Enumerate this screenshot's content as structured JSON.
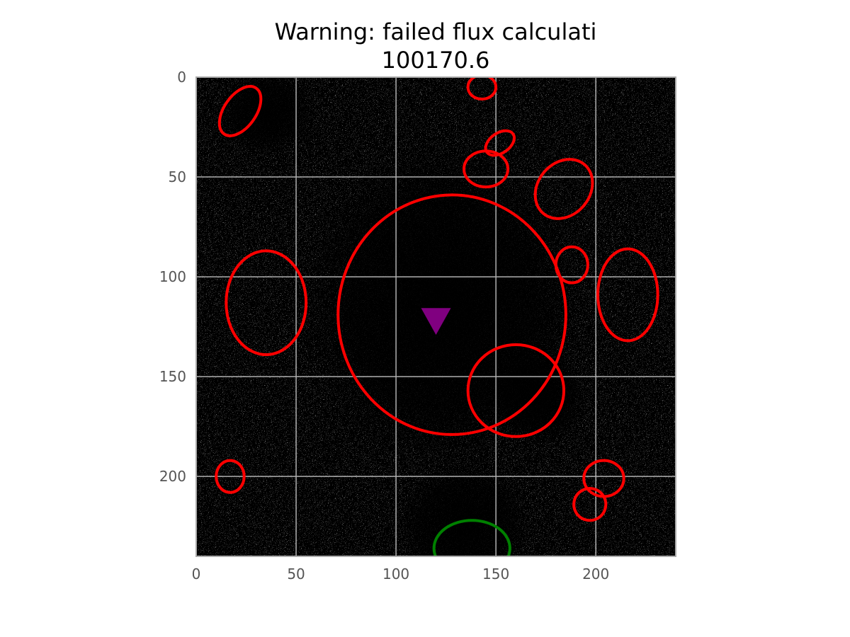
{
  "chart_data": {
    "type": "heatmap",
    "title_lines": [
      "Warning: failed flux calculati",
      "100170.6"
    ],
    "xlabel": "",
    "ylabel": "",
    "xlim": [
      0,
      240
    ],
    "ylim": [
      240,
      0
    ],
    "x_ticks": [
      0,
      50,
      100,
      150,
      200
    ],
    "y_ticks": [
      0,
      50,
      100,
      150,
      200
    ],
    "grid": true,
    "image": {
      "colormap": "gray",
      "background": "black",
      "appearance": "noisy sky image; darker regions around center and bottom"
    },
    "red_apertures": [
      {
        "cx": 22,
        "cy": 17,
        "w": 8,
        "h": 14,
        "angle": 35
      },
      {
        "cx": 143,
        "cy": 5,
        "w": 7,
        "h": 6,
        "angle": 0
      },
      {
        "cx": 152,
        "cy": 33,
        "w": 8,
        "h": 5,
        "angle": -35
      },
      {
        "cx": 145,
        "cy": 46,
        "w": 11,
        "h": 9,
        "angle": 0
      },
      {
        "cx": 184,
        "cy": 56,
        "w": 13,
        "h": 16,
        "angle": 40
      },
      {
        "cx": 188,
        "cy": 94,
        "w": 8,
        "h": 9,
        "angle": 0
      },
      {
        "cx": 35,
        "cy": 113,
        "w": 20,
        "h": 26,
        "angle": 0
      },
      {
        "cx": 216,
        "cy": 109,
        "w": 15,
        "h": 23,
        "angle": 0
      },
      {
        "cx": 128,
        "cy": 119,
        "w": 57,
        "h": 60,
        "angle": 0
      },
      {
        "cx": 160,
        "cy": 157,
        "w": 24,
        "h": 23,
        "angle": 0
      },
      {
        "cx": 17,
        "cy": 200,
        "w": 7,
        "h": 8,
        "angle": 0
      },
      {
        "cx": 204,
        "cy": 201,
        "w": 10,
        "h": 9,
        "angle": 0
      },
      {
        "cx": 197,
        "cy": 214,
        "w": 8,
        "h": 8,
        "angle": -30
      }
    ],
    "green_apertures": [
      {
        "cx": 138,
        "cy": 236,
        "w": 19,
        "h": 14,
        "angle": 0
      }
    ],
    "markers": [
      {
        "x": 120,
        "y": 122,
        "shape": "triangle-down",
        "color": "#800080"
      }
    ],
    "colors": {
      "red_aperture": "#ff0000",
      "green_aperture": "#008000",
      "grid": "#b0b0b0",
      "frame": "#aaaaaa",
      "marker": "#800080"
    }
  }
}
